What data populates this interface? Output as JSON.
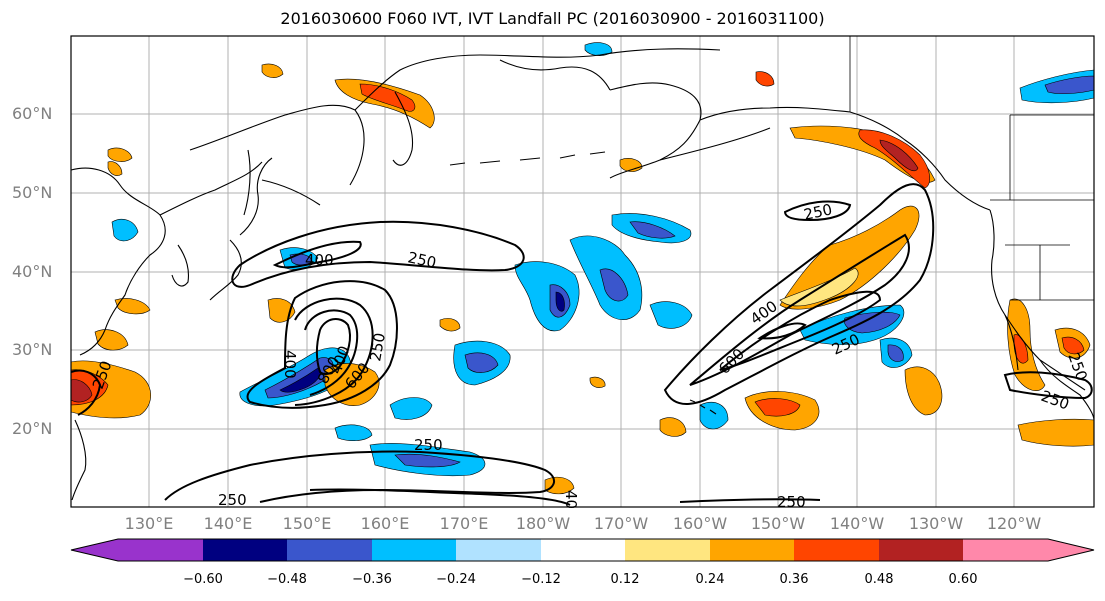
{
  "title": "2016030600 F060 IVT, IVT Landfall PC (2016030900 - 2016031100)",
  "lat_labels": [
    "60°N",
    "50°N",
    "40°N",
    "30°N",
    "20°N"
  ],
  "lon_labels": [
    "130°E",
    "140°E",
    "150°E",
    "160°E",
    "170°E",
    "180°W",
    "170°W",
    "160°W",
    "150°W",
    "140°W",
    "130°W",
    "120°W"
  ],
  "contour_labels": [
    "400",
    "250",
    "250",
    "400",
    "250",
    "250",
    "400",
    "600",
    "800",
    "250",
    "400",
    "600",
    "250",
    "250",
    "250",
    "250",
    "250",
    "40"
  ],
  "colorbar": {
    "ticks": [
      "−0.60",
      "−0.48",
      "−0.36",
      "−0.24",
      "−0.12",
      "0.12",
      "0.24",
      "0.36",
      "0.48",
      "0.60"
    ],
    "colors": [
      "#9933cc",
      "#000080",
      "#3a56cc",
      "#00bfff",
      "#b0e2ff",
      "#ffffff",
      "#ffe680",
      "#ffa500",
      "#ff4500",
      "#b22222",
      "#ff88aa"
    ]
  },
  "palette": {
    "neg_light": "#b0e2ff",
    "neg_mid": "#00bfff",
    "neg_strong": "#3a56cc",
    "neg_max": "#000080",
    "pos_light": "#ffe680",
    "pos_mid": "#ffa500",
    "pos_strong": "#ff4500",
    "pos_max": "#b22222"
  }
}
